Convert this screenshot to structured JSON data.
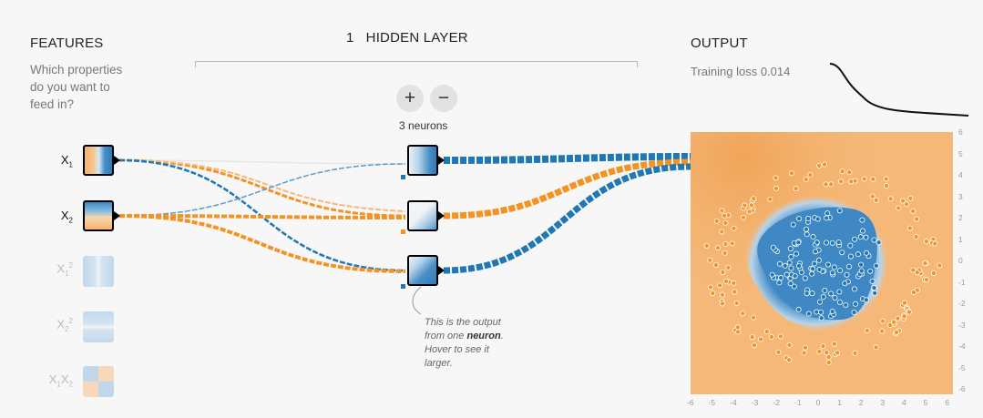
{
  "features": {
    "title": "FEATURES",
    "description_lines": [
      "Which properties",
      "do you want to",
      "feed in?"
    ],
    "items": [
      {
        "base": "X",
        "sub": "1",
        "sup": "",
        "active": true
      },
      {
        "base": "X",
        "sub": "2",
        "sup": "",
        "active": true
      },
      {
        "base": "X",
        "sub": "1",
        "sup": "2",
        "active": false
      },
      {
        "base": "X",
        "sub": "2",
        "sup": "2",
        "active": false
      },
      {
        "base": "X",
        "sub": "1",
        "sup": "",
        "base2": "X",
        "sub2": "2",
        "active": false
      }
    ]
  },
  "hidden_layers": {
    "count": "1",
    "title": "HIDDEN LAYER",
    "add_label": "+",
    "remove_label": "−",
    "neurons_label": "3 neurons"
  },
  "output": {
    "title": "OUTPUT",
    "training_loss_label": "Training loss 0.014"
  },
  "annotation": {
    "line1": "This is the output",
    "line2_prefix": "from one ",
    "line2_bold": "neuron",
    "line2_suffix": ".",
    "line3": "Hover to see it",
    "line4": "larger."
  },
  "axis": {
    "x_ticks": [
      "-6",
      "-5",
      "-4",
      "-3",
      "-2",
      "-1",
      "0",
      "1",
      "2",
      "3",
      "4",
      "5",
      "6"
    ],
    "y_ticks": [
      "6",
      "5",
      "4",
      "3",
      "2",
      "1",
      "0",
      "-1",
      "-2",
      "-3",
      "-4",
      "-5",
      "-6"
    ]
  },
  "colors": {
    "positive": "#1f77b4",
    "negative": "#f59322",
    "bg_orange": "#f7c288",
    "bg_blue": "#4a90c8"
  }
}
